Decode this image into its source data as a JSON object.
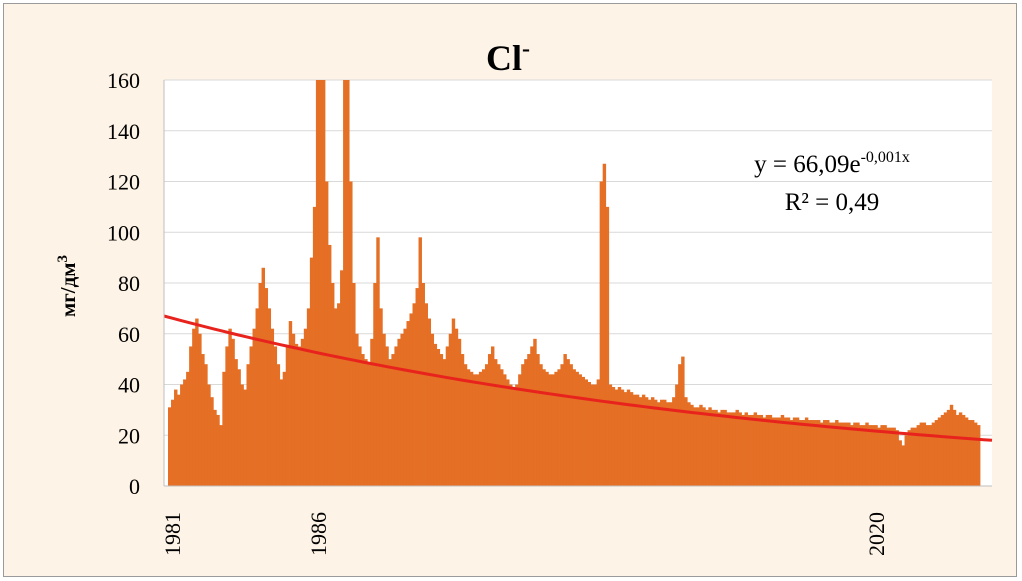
{
  "chart_data": {
    "type": "bar",
    "title": "Cl",
    "title_superscript": "-",
    "ylabel": "мг/дм",
    "ylabel_superscript": "3",
    "xlabel": "",
    "ylim": [
      0,
      160
    ],
    "yticks": [
      "0",
      "20",
      "40",
      "60",
      "80",
      "100",
      "120",
      "140",
      "160"
    ],
    "xticks": [
      "1981",
      "1986",
      "2020"
    ],
    "grid": true,
    "bar_color": "#e46f25",
    "trend_color": "#e8231d",
    "background_color": "#fdf3e6",
    "trendline": {
      "type": "exponential",
      "equation_prefix": "y = 66,09e",
      "equation_exponent": "-0,001x",
      "r2_text": "R² = 0,49",
      "a": 66.09,
      "start_value": 67,
      "end_value": 18
    },
    "series": [
      {
        "values": [
          31,
          34,
          38,
          36,
          40,
          42,
          45,
          55,
          62,
          66,
          60,
          52,
          48,
          40,
          35,
          30,
          28,
          24,
          45,
          55,
          62,
          58,
          50,
          46,
          40,
          38,
          48,
          55,
          62,
          70,
          80,
          86,
          78,
          70,
          62,
          55,
          48,
          42,
          45,
          55,
          65,
          60,
          56,
          55,
          58,
          62,
          70,
          90,
          110,
          160,
          160,
          160,
          120,
          95,
          80,
          70,
          72,
          85,
          160,
          160,
          120,
          80,
          60,
          55,
          52,
          50,
          48,
          58,
          80,
          98,
          70,
          60,
          55,
          50,
          52,
          55,
          58,
          60,
          62,
          65,
          68,
          72,
          78,
          98,
          80,
          72,
          66,
          60,
          56,
          54,
          52,
          50,
          55,
          60,
          66,
          62,
          58,
          52,
          48,
          46,
          45,
          44,
          44,
          45,
          46,
          48,
          52,
          55,
          50,
          48,
          46,
          44,
          42,
          40,
          38,
          40,
          44,
          48,
          50,
          52,
          55,
          58,
          52,
          48,
          46,
          45,
          44,
          44,
          45,
          46,
          48,
          52,
          50,
          48,
          46,
          45,
          44,
          43,
          42,
          41,
          40,
          40,
          42,
          120,
          127,
          110,
          40,
          39,
          38,
          39,
          38,
          37,
          38,
          37,
          36,
          36,
          35,
          36,
          35,
          34,
          35,
          34,
          33,
          34,
          34,
          33,
          33,
          35,
          40,
          48,
          51,
          35,
          33,
          32,
          31,
          31,
          32,
          31,
          30,
          31,
          30,
          30,
          29,
          30,
          30,
          29,
          29,
          29,
          30,
          29,
          28,
          29,
          28,
          28,
          29,
          28,
          28,
          27,
          28,
          28,
          27,
          27,
          27,
          28,
          27,
          27,
          26,
          27,
          27,
          26,
          26,
          27,
          26,
          26,
          26,
          26,
          25,
          26,
          26,
          25,
          25,
          26,
          25,
          25,
          25,
          25,
          24,
          25,
          25,
          24,
          24,
          25,
          24,
          24,
          24,
          23,
          24,
          24,
          23,
          23,
          23,
          22,
          18,
          16,
          20,
          22,
          23,
          23,
          24,
          25,
          25,
          24,
          24,
          25,
          26,
          27,
          28,
          29,
          30,
          32,
          30,
          28,
          29,
          28,
          27,
          26,
          26,
          25,
          24
        ]
      }
    ]
  }
}
